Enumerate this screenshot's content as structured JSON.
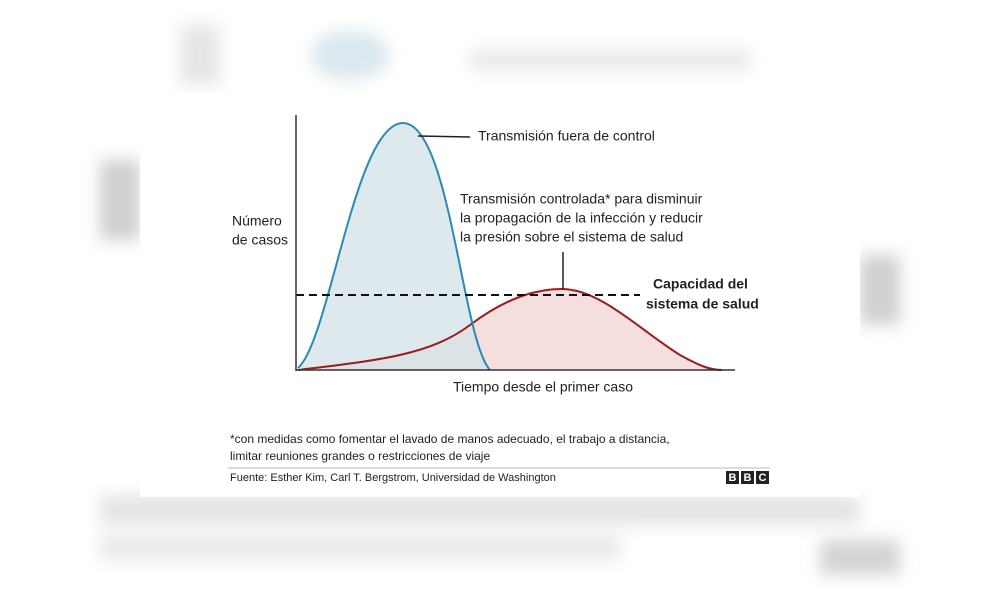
{
  "diagram": {
    "y_axis_label": [
      "Número",
      "de casos"
    ],
    "x_axis_label": "Tiempo desde el primer caso",
    "uncontrolled_label": "Transmisión fuera de control",
    "controlled_label": [
      "Transmisión controlada* para disminuir",
      "la propagación de la infección y reducir",
      "la presión sobre el sistema de salud"
    ],
    "capacity_label": [
      "Capacidad del",
      "sistema de salud"
    ],
    "footnote": [
      "*con medidas como fomentar el lavado de manos adecuado, el trabajo a distancia,",
      "limitar reuniones grandes o restricciones de viaje"
    ],
    "source": "Fuente: Esther Kim, Carl T. Bergstrom, Universidad de Washington",
    "logo": [
      "B",
      "B",
      "C"
    ]
  }
}
